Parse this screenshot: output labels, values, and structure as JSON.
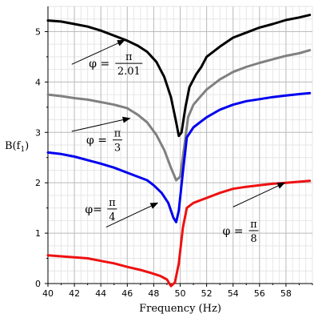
{
  "chart_data": {
    "type": "line",
    "xlabel": "Frequency (Hz)",
    "ylabel": "B(f",
    "ylabel_sub": "1",
    "ylabel_close": ")",
    "xlim": [
      40,
      60
    ],
    "ylim": [
      0,
      5.5
    ],
    "x_ticks": [
      40,
      42,
      44,
      46,
      48,
      50,
      52,
      54,
      56,
      58
    ],
    "y_ticks": [
      0,
      1,
      2,
      3,
      4,
      5
    ],
    "grid": true,
    "colors": {
      "black": "#000000",
      "gray": "#808080",
      "blue": "#0000ee",
      "red": "#ee1111"
    },
    "series": [
      {
        "color": "black",
        "points": [
          [
            40,
            5.22
          ],
          [
            41,
            5.2
          ],
          [
            42,
            5.15
          ],
          [
            43,
            5.1
          ],
          [
            44,
            5.02
          ],
          [
            45,
            4.92
          ],
          [
            46,
            4.82
          ],
          [
            46.8,
            4.72
          ],
          [
            47.5,
            4.6
          ],
          [
            48.2,
            4.4
          ],
          [
            48.8,
            4.1
          ],
          [
            49.3,
            3.7
          ],
          [
            49.7,
            3.2
          ],
          [
            49.9,
            2.93
          ],
          [
            50.1,
            3.0
          ],
          [
            50.4,
            3.5
          ],
          [
            50.7,
            3.9
          ],
          [
            51.2,
            4.15
          ],
          [
            51.6,
            4.3
          ],
          [
            52,
            4.5
          ],
          [
            53,
            4.7
          ],
          [
            54,
            4.88
          ],
          [
            55,
            4.98
          ],
          [
            56,
            5.08
          ],
          [
            57,
            5.15
          ],
          [
            58,
            5.23
          ],
          [
            59,
            5.28
          ],
          [
            59.8,
            5.33
          ]
        ]
      },
      {
        "color": "gray",
        "points": [
          [
            40,
            3.75
          ],
          [
            41,
            3.72
          ],
          [
            42,
            3.68
          ],
          [
            43,
            3.65
          ],
          [
            44,
            3.6
          ],
          [
            45,
            3.55
          ],
          [
            46,
            3.48
          ],
          [
            46.8,
            3.35
          ],
          [
            47.5,
            3.2
          ],
          [
            48.2,
            2.95
          ],
          [
            48.8,
            2.65
          ],
          [
            49.3,
            2.3
          ],
          [
            49.7,
            2.05
          ],
          [
            50,
            2.12
          ],
          [
            50.3,
            2.7
          ],
          [
            50.6,
            3.3
          ],
          [
            51,
            3.55
          ],
          [
            51.5,
            3.7
          ],
          [
            52,
            3.85
          ],
          [
            53,
            4.05
          ],
          [
            54,
            4.2
          ],
          [
            55,
            4.3
          ],
          [
            56,
            4.38
          ],
          [
            57,
            4.45
          ],
          [
            58,
            4.52
          ],
          [
            59,
            4.57
          ],
          [
            59.8,
            4.63
          ]
        ]
      },
      {
        "color": "blue",
        "points": [
          [
            40,
            2.6
          ],
          [
            41,
            2.57
          ],
          [
            42,
            2.52
          ],
          [
            43,
            2.45
          ],
          [
            44,
            2.38
          ],
          [
            45,
            2.3
          ],
          [
            46,
            2.2
          ],
          [
            46.8,
            2.12
          ],
          [
            47.5,
            2.05
          ],
          [
            48,
            1.95
          ],
          [
            48.6,
            1.8
          ],
          [
            49.1,
            1.6
          ],
          [
            49.5,
            1.3
          ],
          [
            49.7,
            1.22
          ],
          [
            49.9,
            1.45
          ],
          [
            50.2,
            2.2
          ],
          [
            50.5,
            2.9
          ],
          [
            51,
            3.1
          ],
          [
            51.5,
            3.2
          ],
          [
            52,
            3.3
          ],
          [
            53,
            3.45
          ],
          [
            54,
            3.55
          ],
          [
            55,
            3.62
          ],
          [
            56,
            3.66
          ],
          [
            57,
            3.7
          ],
          [
            58,
            3.73
          ],
          [
            59,
            3.76
          ],
          [
            59.8,
            3.78
          ]
        ]
      },
      {
        "color": "red",
        "points": [
          [
            40,
            0.56
          ],
          [
            41,
            0.54
          ],
          [
            42,
            0.52
          ],
          [
            43,
            0.5
          ],
          [
            44,
            0.45
          ],
          [
            45,
            0.4
          ],
          [
            46,
            0.33
          ],
          [
            47,
            0.27
          ],
          [
            47.8,
            0.21
          ],
          [
            48.5,
            0.15
          ],
          [
            49,
            0.08
          ],
          [
            49.3,
            -0.05
          ],
          [
            49.6,
            0.02
          ],
          [
            49.9,
            0.4
          ],
          [
            50.2,
            1.1
          ],
          [
            50.5,
            1.5
          ],
          [
            51,
            1.6
          ],
          [
            52,
            1.7
          ],
          [
            53,
            1.8
          ],
          [
            54,
            1.88
          ],
          [
            55,
            1.92
          ],
          [
            56,
            1.95
          ],
          [
            57,
            1.98
          ],
          [
            58,
            2.0
          ],
          [
            59,
            2.02
          ],
          [
            59.8,
            2.04
          ]
        ]
      }
    ],
    "annotations": [
      {
        "phi": "φ =",
        "num": "π",
        "den": "2.01",
        "text_x": 43.1,
        "text_y": 4.37,
        "arrow_from": [
          41.8,
          4.35
        ],
        "arrow_to": [
          45.8,
          4.83
        ]
      },
      {
        "phi": "φ =",
        "num": "π",
        "den": "3",
        "text_x": 42.9,
        "text_y": 2.85,
        "arrow_from": [
          41.8,
          3.02
        ],
        "arrow_to": [
          46.2,
          3.28
        ]
      },
      {
        "phi": "φ=",
        "num": "π",
        "den": "4",
        "text_x": 42.8,
        "text_y": 1.48,
        "arrow_from": [
          44.4,
          1.12
        ],
        "arrow_to": [
          48.3,
          1.6
        ]
      },
      {
        "phi": "φ =",
        "num": "π",
        "den": "8",
        "text_x": 53.2,
        "text_y": 1.05,
        "arrow_from": [
          54.0,
          1.52
        ],
        "arrow_to": [
          57.9,
          2.0
        ]
      }
    ]
  }
}
